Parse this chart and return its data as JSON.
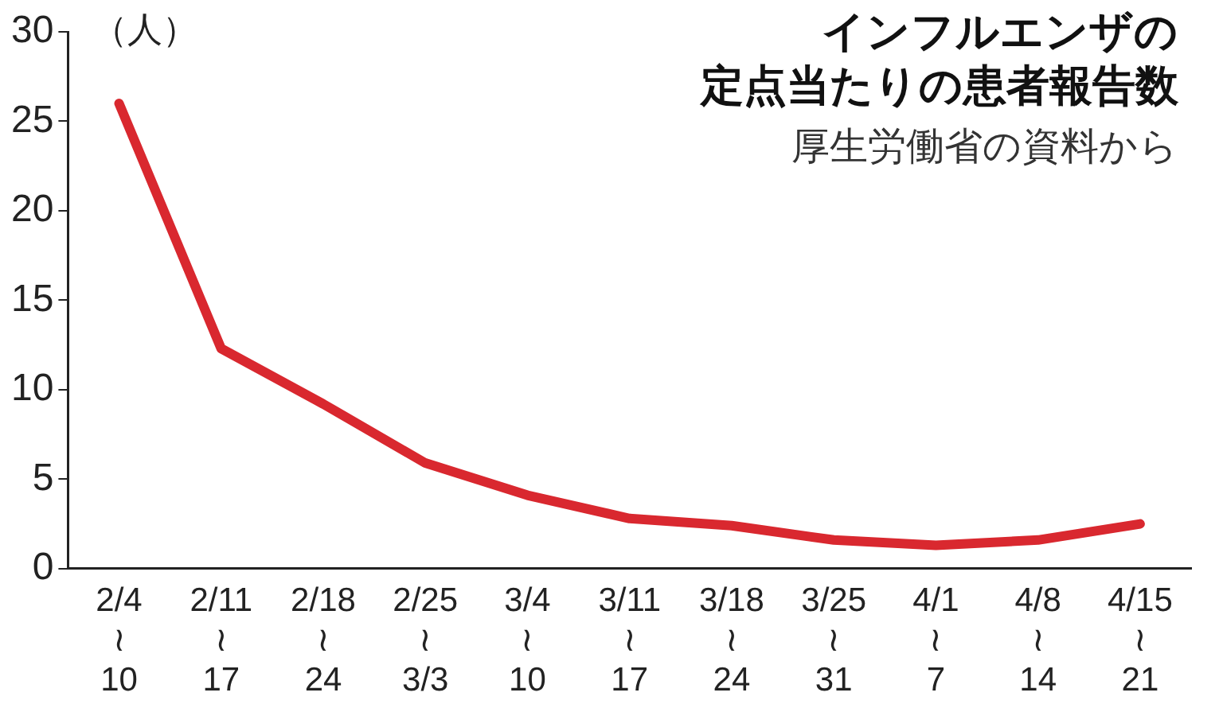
{
  "chart_data": {
    "type": "line",
    "title": "インフルエンザの定点当たりの患者報告数",
    "subtitle": "厚生労働省の資料から",
    "ylabel": "（人）",
    "categories": [
      "2/4\n≀\n10",
      "2/11\n≀\n17",
      "2/18\n≀\n24",
      "2/25\n≀\n3/3",
      "3/4\n≀\n10",
      "3/11\n≀\n17",
      "3/18\n≀\n24",
      "3/25\n≀\n31",
      "4/1\n≀\n7",
      "4/8\n≀\n14",
      "4/15\n≀\n21"
    ],
    "series": [
      {
        "color": "#d9282f",
        "values": [
          26.0,
          12.3,
          9.2,
          5.9,
          4.1,
          2.8,
          2.4,
          1.6,
          1.3,
          1.6,
          2.5
        ]
      }
    ],
    "ylim": [
      0,
      30
    ],
    "yticks": [
      0,
      5,
      10,
      15,
      20,
      25,
      30
    ],
    "grid": false,
    "legend": false,
    "marker": "none",
    "line_style": "solid"
  }
}
